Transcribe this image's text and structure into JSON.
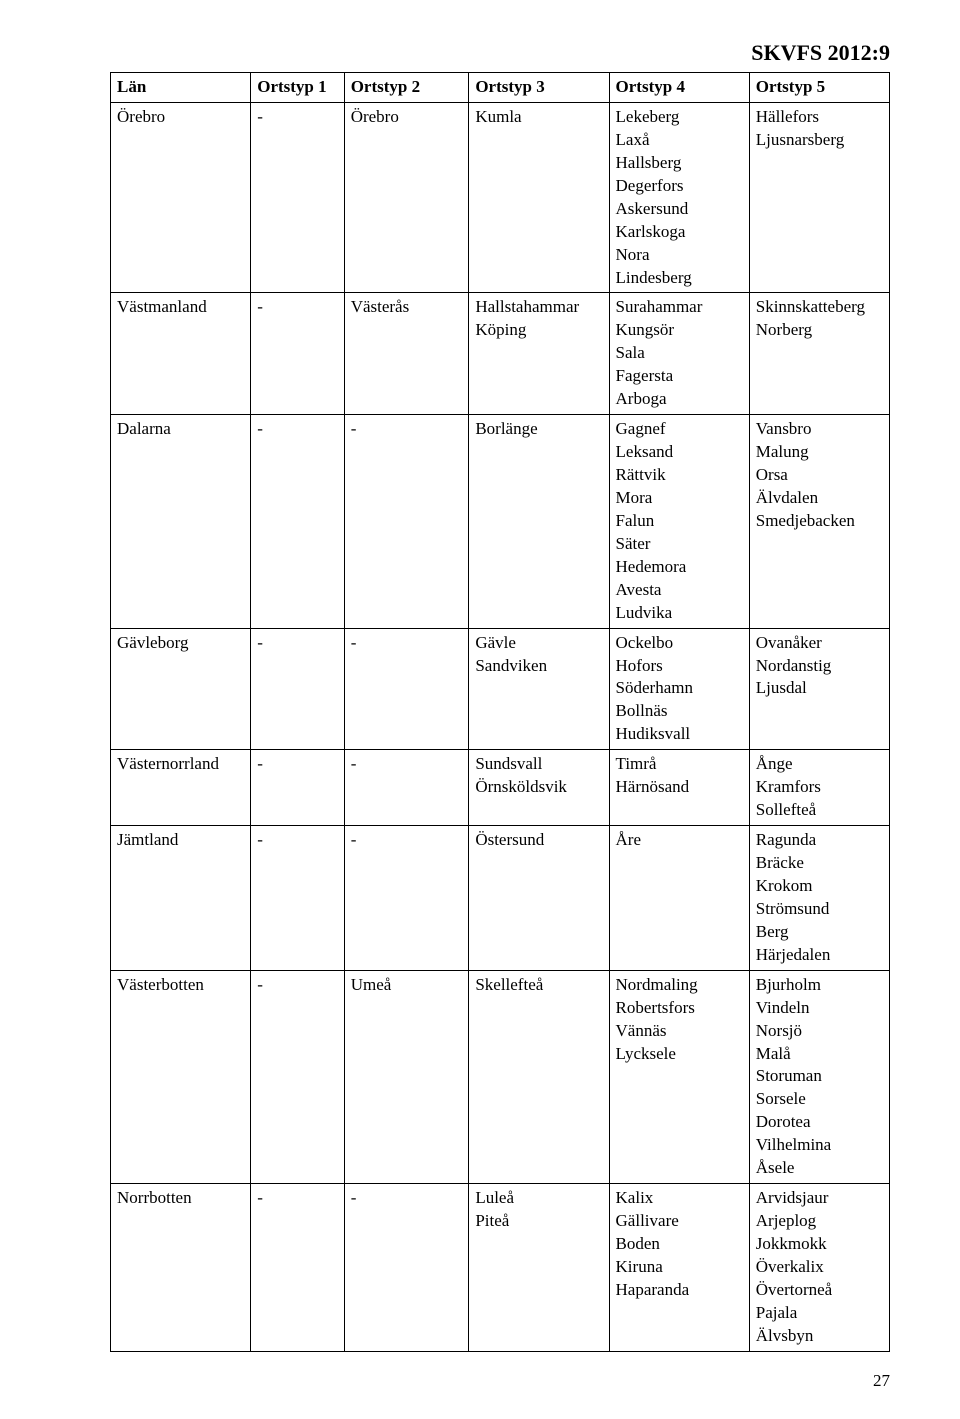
{
  "doc_id": "SKVFS 2012:9",
  "page_number": "27",
  "headers": [
    "Län",
    "Ortstyp 1",
    "Ortstyp 2",
    "Ortstyp 3",
    "Ortstyp 4",
    "Ortstyp 5"
  ],
  "rows": [
    {
      "c1": "Örebro",
      "c2": "-",
      "c3": "Örebro",
      "c4": "Kumla",
      "c5": "Lekeberg\nLaxå\nHallsberg\nDegerfors\nAskersund\nKarlskoga\nNora\nLindesberg",
      "c6": "Hällefors\nLjusnarsberg"
    },
    {
      "c1": "Västmanland",
      "c2": "-",
      "c3": "Västerås",
      "c4": "Hallstahammar\nKöping",
      "c5": "Surahammar\nKungsör\nSala\nFagersta\nArboga",
      "c6": "Skinnskatteberg\nNorberg"
    },
    {
      "c1": "Dalarna",
      "c2": "-",
      "c3": "-",
      "c4": "Borlänge",
      "c5": "Gagnef\nLeksand\nRättvik\nMora\nFalun\nSäter\nHedemora\nAvesta\nLudvika",
      "c6": "Vansbro\nMalung\nOrsa\nÄlvdalen\nSmedjebacken"
    },
    {
      "c1": "Gävleborg",
      "c2": "-",
      "c3": "-",
      "c4": "Gävle\nSandviken",
      "c5": "Ockelbo\nHofors\nSöderhamn\nBollnäs\nHudiksvall",
      "c6": "Ovanåker\nNordanstig\nLjusdal"
    },
    {
      "c1": "Västernorrland",
      "c2": "-",
      "c3": "-",
      "c4": "Sundsvall\nÖrnsköldsvik",
      "c5": "Timrå\nHärnösand",
      "c6": "Ånge\nKramfors\nSollefteå"
    },
    {
      "c1": "Jämtland",
      "c2": "-",
      "c3": "-",
      "c4": "Östersund",
      "c5": "Åre",
      "c6": "Ragunda\nBräcke\nKrokom\nStrömsund\nBerg\nHärjedalen"
    },
    {
      "c1": "Västerbotten",
      "c2": "-",
      "c3": "Umeå",
      "c4": "Skellefteå",
      "c5": "Nordmaling\nRobertsfors\nVännäs\nLycksele",
      "c6": "Bjurholm\nVindeln\nNorsjö\nMalå\nStoruman\nSorsele\nDorotea\nVilhelmina\nÅsele"
    },
    {
      "c1": "Norrbotten",
      "c2": "-",
      "c3": "-",
      "c4": "Luleå\nPiteå",
      "c5": "Kalix\nGällivare\nBoden\nKiruna\nHaparanda",
      "c6": "Arvidsjaur\nArjeplog\nJokkmokk\nÖverkalix\nÖvertorneå\nPajala\nÄlvsbyn"
    }
  ]
}
